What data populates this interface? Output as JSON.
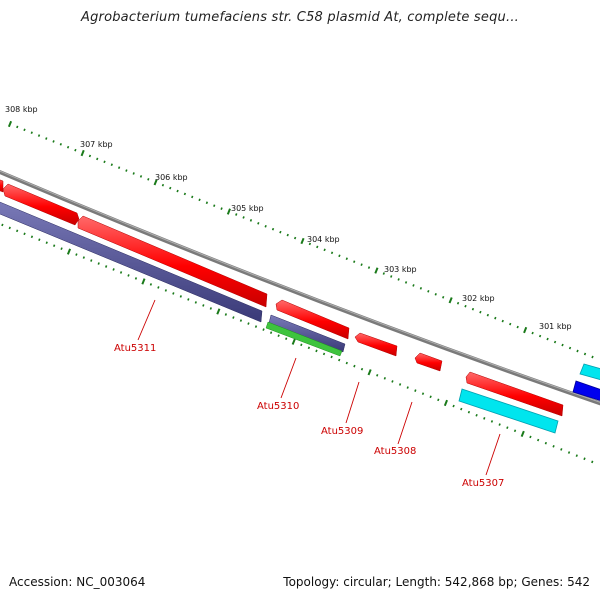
{
  "title": "Agrobacterium tumefaciens str. C58 plasmid At, complete sequ...",
  "footer": {
    "accession": "Accession: NC_003064",
    "summary": "Topology: circular; Length: 542,868 bp; Genes: 542"
  },
  "scale_labels": [
    "308 kbp",
    "307 kbp",
    "306 kbp",
    "305 kbp",
    "304 kbp",
    "303 kbp",
    "302 kbp",
    "301 kbp"
  ],
  "gene_labels": [
    "Atu5311",
    "Atu5310",
    "Atu5309",
    "Atu5308",
    "Atu5307"
  ],
  "colors": {
    "cds_forward": "#ff0000",
    "cds_reverse_purple": "#4b4b8f",
    "cyan": "#00e5ee",
    "blue": "#0000ee",
    "green": "#3ec43e",
    "backbone": "#808080",
    "tick": "#1a7a1a",
    "label": "#cc0000"
  }
}
